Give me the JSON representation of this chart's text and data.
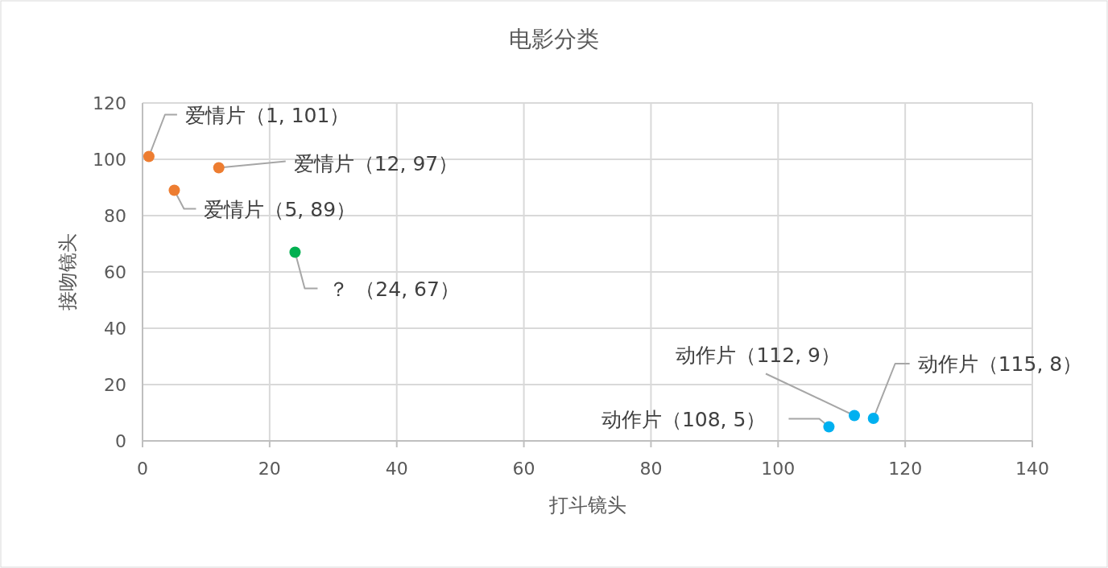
{
  "chart_data": {
    "type": "scatter",
    "title": "电影分类",
    "xlabel": "打斗镜头",
    "ylabel": "接吻镜头",
    "series": [
      {
        "color": "#ed7d31",
        "x": [
          1,
          12,
          5
        ],
        "values": [
          101,
          97,
          89
        ]
      },
      {
        "color": "#00b050",
        "x": [
          24
        ],
        "values": [
          67
        ]
      },
      {
        "color": "#00b0f0",
        "x": [
          108,
          112,
          115
        ],
        "values": [
          5,
          9,
          8
        ]
      }
    ],
    "annotations": [
      {
        "text": "爱情片（1, 101）",
        "x": 1,
        "y": 101
      },
      {
        "text": "爱情片（12, 97）",
        "x": 12,
        "y": 97
      },
      {
        "text": "爱情片（5, 89）",
        "x": 5,
        "y": 89
      },
      {
        "text": "？ （24, 67）",
        "x": 24,
        "y": 67
      },
      {
        "text": "动作片（112, 9）",
        "x": 112,
        "y": 9
      },
      {
        "text": "动作片（115, 8）",
        "x": 115,
        "y": 8
      },
      {
        "text": "动作片（108, 5）",
        "x": 108,
        "y": 5
      }
    ],
    "xlim": [
      0,
      140
    ],
    "xticks": [
      0,
      20,
      40,
      60,
      80,
      100,
      120,
      140
    ],
    "ylim": [
      0,
      120
    ],
    "yticks": [
      0,
      20,
      40,
      60,
      80,
      100,
      120
    ],
    "grid": true,
    "marker": "circle"
  }
}
